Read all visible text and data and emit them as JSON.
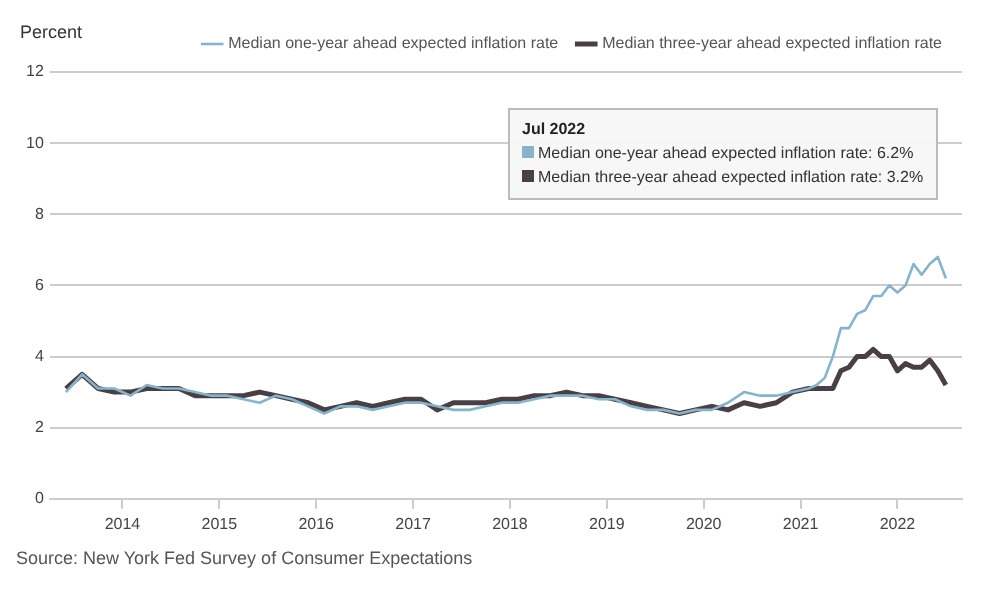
{
  "chart_data": {
    "type": "line",
    "ylabel": "Percent",
    "x": [
      "2013-06",
      "2013-08",
      "2013-10",
      "2013-12",
      "2014-02",
      "2014-04",
      "2014-06",
      "2014-08",
      "2014-10",
      "2014-12",
      "2015-02",
      "2015-04",
      "2015-06",
      "2015-08",
      "2015-10",
      "2015-12",
      "2016-02",
      "2016-04",
      "2016-06",
      "2016-08",
      "2016-10",
      "2016-12",
      "2017-02",
      "2017-04",
      "2017-06",
      "2017-08",
      "2017-10",
      "2017-12",
      "2018-02",
      "2018-04",
      "2018-06",
      "2018-08",
      "2018-10",
      "2018-12",
      "2019-02",
      "2019-04",
      "2019-06",
      "2019-08",
      "2019-10",
      "2019-12",
      "2020-02",
      "2020-04",
      "2020-06",
      "2020-08",
      "2020-10",
      "2020-12",
      "2021-02",
      "2021-03",
      "2021-04",
      "2021-05",
      "2021-06",
      "2021-07",
      "2021-08",
      "2021-09",
      "2021-10",
      "2021-11",
      "2021-12",
      "2022-01",
      "2022-02",
      "2022-03",
      "2022-04",
      "2022-05",
      "2022-06",
      "2022-07"
    ],
    "series": [
      {
        "name": "Median one-year ahead expected inflation rate",
        "color": "#86b4cc",
        "values": [
          3.0,
          3.5,
          3.1,
          3.1,
          2.9,
          3.2,
          3.1,
          3.1,
          3.0,
          2.9,
          2.9,
          2.8,
          2.7,
          2.9,
          2.8,
          2.6,
          2.4,
          2.6,
          2.6,
          2.5,
          2.6,
          2.7,
          2.7,
          2.6,
          2.5,
          2.5,
          2.6,
          2.7,
          2.7,
          2.8,
          2.9,
          2.9,
          2.9,
          2.8,
          2.8,
          2.6,
          2.5,
          2.5,
          2.4,
          2.5,
          2.5,
          2.7,
          3.0,
          2.9,
          2.9,
          3.0,
          3.1,
          3.2,
          3.4,
          4.0,
          4.8,
          4.8,
          5.2,
          5.3,
          5.7,
          5.7,
          6.0,
          5.8,
          6.0,
          6.6,
          6.3,
          6.6,
          6.8,
          6.2
        ]
      },
      {
        "name": "Median three-year ahead expected inflation rate",
        "color": "#4a3f44",
        "values": [
          3.1,
          3.5,
          3.1,
          3.0,
          3.0,
          3.1,
          3.1,
          3.1,
          2.9,
          2.9,
          2.9,
          2.9,
          3.0,
          2.9,
          2.8,
          2.7,
          2.5,
          2.6,
          2.7,
          2.6,
          2.7,
          2.8,
          2.8,
          2.5,
          2.7,
          2.7,
          2.7,
          2.8,
          2.8,
          2.9,
          2.9,
          3.0,
          2.9,
          2.9,
          2.8,
          2.7,
          2.6,
          2.5,
          2.4,
          2.5,
          2.6,
          2.5,
          2.7,
          2.6,
          2.7,
          3.0,
          3.1,
          3.1,
          3.1,
          3.1,
          3.6,
          3.7,
          4.0,
          4.0,
          4.2,
          4.0,
          4.0,
          3.6,
          3.8,
          3.7,
          3.7,
          3.9,
          3.6,
          3.2
        ]
      }
    ],
    "xlim": [
      "2013-04",
      "2022-09"
    ],
    "xticks": [
      "2014",
      "2015",
      "2016",
      "2017",
      "2018",
      "2019",
      "2020",
      "2021",
      "2022"
    ],
    "ylim": [
      0,
      12
    ],
    "yticks": [
      0,
      2,
      4,
      6,
      8,
      10,
      12
    ],
    "grid": "y",
    "legend": "top right",
    "marker": "none",
    "line_style": "solid",
    "annotations": [
      "Jul 2022",
      "Median one-year ahead expected inflation rate: 6.2%",
      "Median three-year ahead expected inflation rate: 3.2%",
      "Source: New York Fed Survey of Consumer Expectations"
    ]
  }
}
